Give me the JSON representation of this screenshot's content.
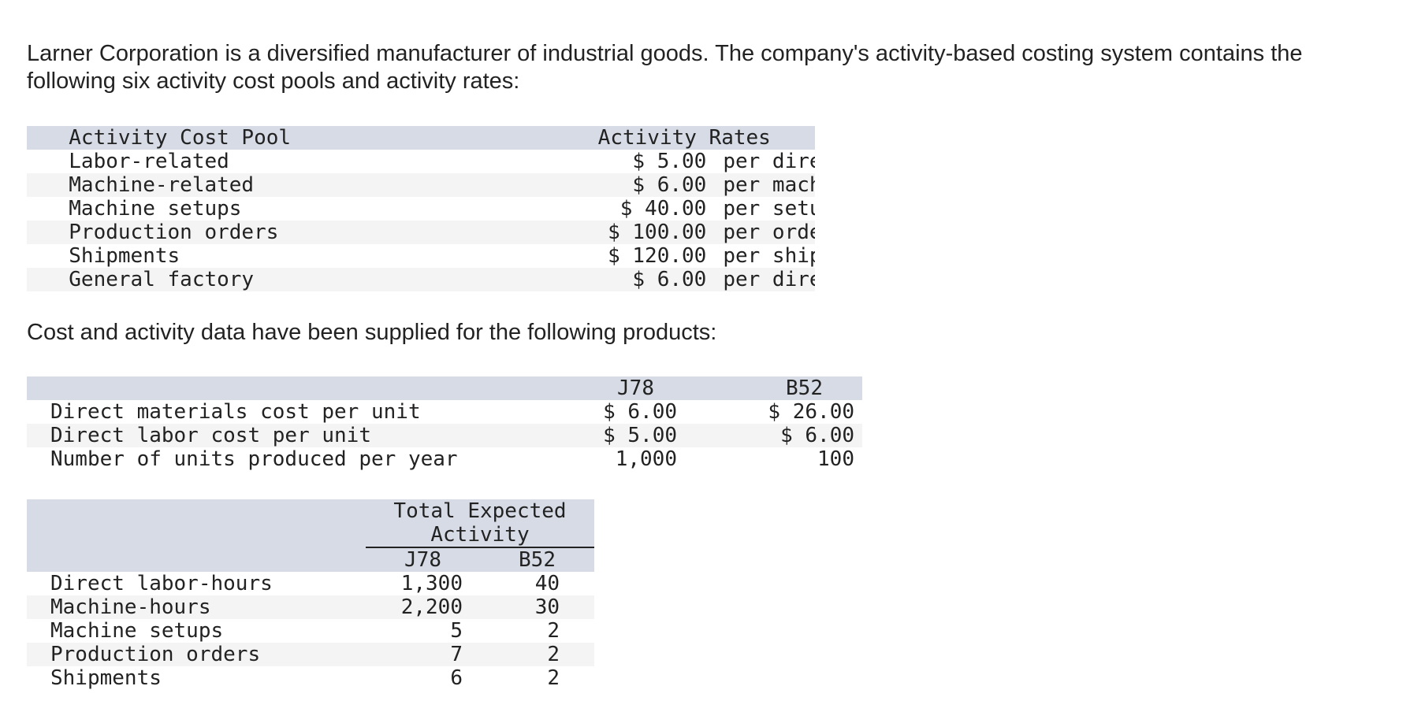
{
  "intro": {
    "line1": "Larner Corporation is a diversified manufacturer of industrial goods. The company's activity-based costing system contains the",
    "line2": "following six activity cost pools and activity rates:"
  },
  "rates_table": {
    "headers": [
      "Activity Cost Pool",
      "Activity Rates"
    ],
    "rows": [
      {
        "pool": "Labor-related",
        "rate": "$ 5.00",
        "unit": "per direct labor-hour"
      },
      {
        "pool": "Machine-related",
        "rate": "$ 6.00",
        "unit": "per machine-hour"
      },
      {
        "pool": "Machine setups",
        "rate": "$ 40.00",
        "unit": "per setup"
      },
      {
        "pool": "Production orders",
        "rate": "$ 100.00",
        "unit": "per order"
      },
      {
        "pool": "Shipments",
        "rate": "$ 120.00",
        "unit": "per shipment"
      },
      {
        "pool": "General factory",
        "rate": "$ 6.00",
        "unit": "per direct labor-hour"
      }
    ]
  },
  "cost_intro": "Cost and activity data have been supplied for the following products:",
  "products_table": {
    "headers": [
      "J78",
      "B52"
    ],
    "rows": [
      {
        "label": "Direct materials cost per unit",
        "j78": "$ 6.00",
        "b52": "$ 26.00"
      },
      {
        "label": "Direct labor cost per unit",
        "j78": "$ 5.00",
        "b52": "$ 6.00"
      },
      {
        "label": "Number of units produced per year",
        "j78": "1,000",
        "b52": "100"
      }
    ]
  },
  "activity_table": {
    "group_header_line1": "Total Expected",
    "group_header_line2": "Activity",
    "headers": [
      "J78",
      "B52"
    ],
    "rows": [
      {
        "label": "Direct labor-hours",
        "j78": "1,300",
        "b52": "40"
      },
      {
        "label": "Machine-hours",
        "j78": "2,200",
        "b52": "30"
      },
      {
        "label": "Machine setups",
        "j78": "5",
        "b52": "2"
      },
      {
        "label": "Production orders",
        "j78": "7",
        "b52": "2"
      },
      {
        "label": "Shipments",
        "j78": "6",
        "b52": "2"
      }
    ]
  }
}
